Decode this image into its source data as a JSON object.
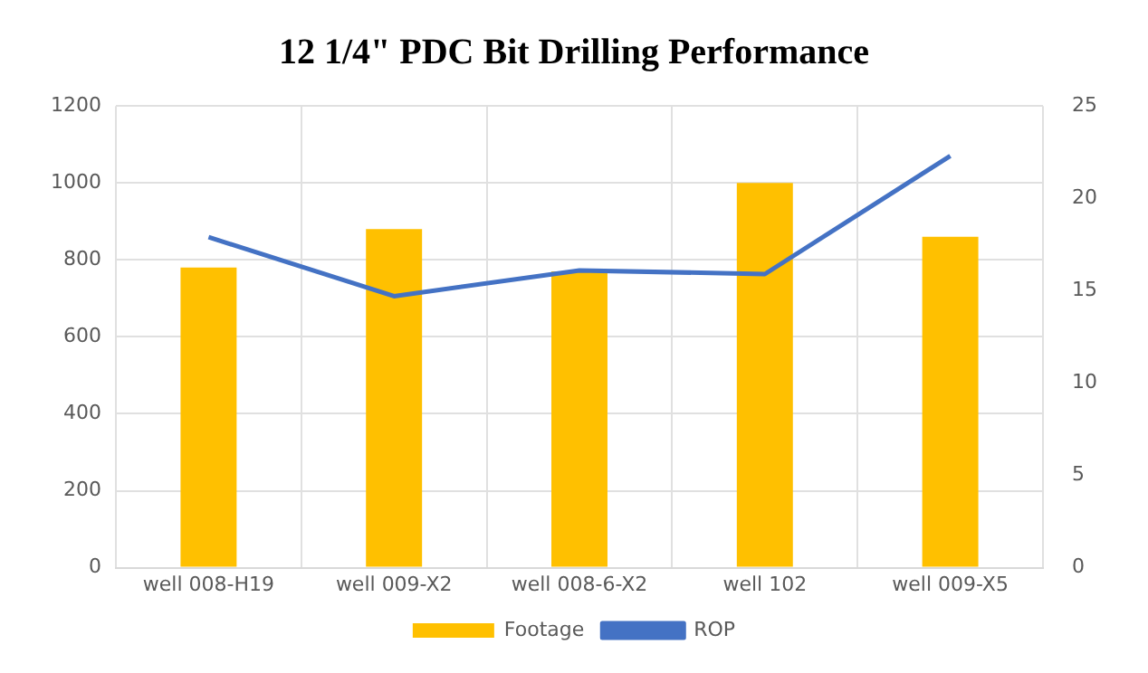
{
  "chart_data": {
    "type": "bar",
    "title": "12 1/4\" PDC Bit Drilling Performance",
    "categories": [
      "well 008-H19",
      "well 009-X2",
      "well 008-6-X2",
      "well 102",
      "well 009-X5"
    ],
    "series": [
      {
        "name": "Footage",
        "color": "#ffc000",
        "values": [
          780,
          880,
          770,
          1000,
          860
        ]
      },
      {
        "name": "ROP",
        "type": "line",
        "axis": "y2",
        "color": "#4472c4",
        "values": [
          17.9,
          14.7,
          16.1,
          15.9,
          22.3
        ]
      }
    ],
    "ylim": [
      0,
      1200
    ],
    "yticks": [
      0,
      200,
      400,
      600,
      800,
      1000,
      1200
    ],
    "y2lim": [
      0,
      25
    ],
    "y2ticks": [
      0,
      5,
      10,
      15,
      20,
      25
    ],
    "grid": true,
    "legend": "bottom",
    "marker": "none"
  }
}
